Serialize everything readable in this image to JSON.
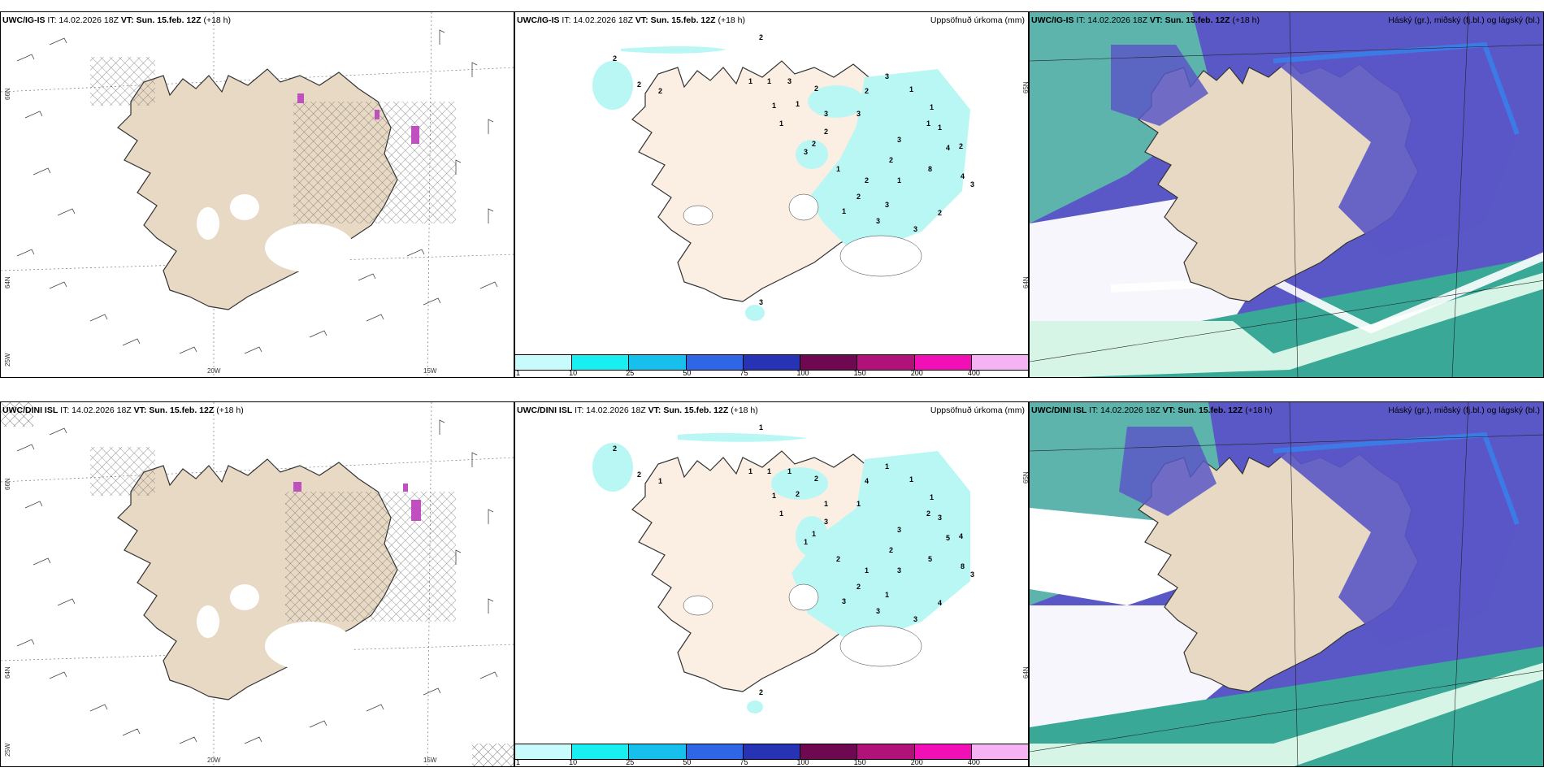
{
  "colors": {
    "land": "#e8d9c4",
    "land_light": "#fbeee2",
    "precip": "#b9f7f5",
    "sea_green": "#5cbfa8",
    "cloud_high": "#5a57c6",
    "cloud_blue": "#3c7be6",
    "hatch": "#555555",
    "snow": "#ffffff"
  },
  "rows": [
    {
      "model": "UWC/IG-IS",
      "it_label": "IT: 14.02.2026 18Z",
      "vt_label": "VT: Sun. 15.feb. 12Z",
      "lead": "(+18 h)",
      "precip_title": "Uppsöfnuð úrkoma (mm)",
      "cloud_title": "Háský (gr.), miðský (fj.bl.) og lágský (bl.)",
      "axis": {
        "lat_66": "66N",
        "lat_64": "64N",
        "lon_25": "25W",
        "lon_20": "20W",
        "lon_15": "15W",
        "lat_65r": "65N",
        "lat_64r": "64N"
      },
      "precip_numbers": [
        "2",
        "2",
        "2",
        "2",
        "1",
        "1",
        "1",
        "1",
        "1",
        "2",
        "3",
        "2",
        "3",
        "2",
        "3",
        "1",
        "1",
        "1",
        "1",
        "2",
        "4",
        "4",
        "8",
        "3",
        "2",
        "3",
        "2",
        "1",
        "2",
        "1",
        "3",
        "2",
        "3",
        "3",
        "3",
        "3",
        "3",
        "1",
        "2"
      ]
    },
    {
      "model": "UWC/DINI ISL",
      "it_label": "IT: 14.02.2026 18Z",
      "vt_label": "VT: Sun. 15.feb. 12Z",
      "lead": "(+18 h)",
      "precip_title": "Uppsöfnuð úrkoma (mm)",
      "cloud_title": "Háský (gr.), miðský (fj.bl.) og lágský (bl.)",
      "axis": {
        "lat_66": "66N",
        "lat_64": "64N",
        "lon_25": "25W",
        "lon_20": "20W",
        "lon_15": "15W",
        "lat_65r": "65N",
        "lat_64r": "64N"
      },
      "precip_numbers": [
        "2",
        "2",
        "1",
        "1",
        "1",
        "1",
        "1",
        "1",
        "2",
        "2",
        "1",
        "1",
        "1",
        "4",
        "1",
        "1",
        "1",
        "2",
        "3",
        "4",
        "8",
        "5",
        "5",
        "3",
        "2",
        "1",
        "2",
        "3",
        "1",
        "3",
        "3",
        "4",
        "3",
        "3",
        "2",
        "1",
        "1",
        "2",
        "3"
      ]
    }
  ],
  "colorbar": {
    "labels": [
      "1",
      "10",
      "25",
      "50",
      "75",
      "100",
      "150",
      "200",
      "400"
    ],
    "colors": [
      "#c8fbfb",
      "#19eef0",
      "#17c0ec",
      "#2f66e6",
      "#2533b4",
      "#6e0850",
      "#b0127a",
      "#f010b5",
      "#f6b3f3"
    ]
  }
}
